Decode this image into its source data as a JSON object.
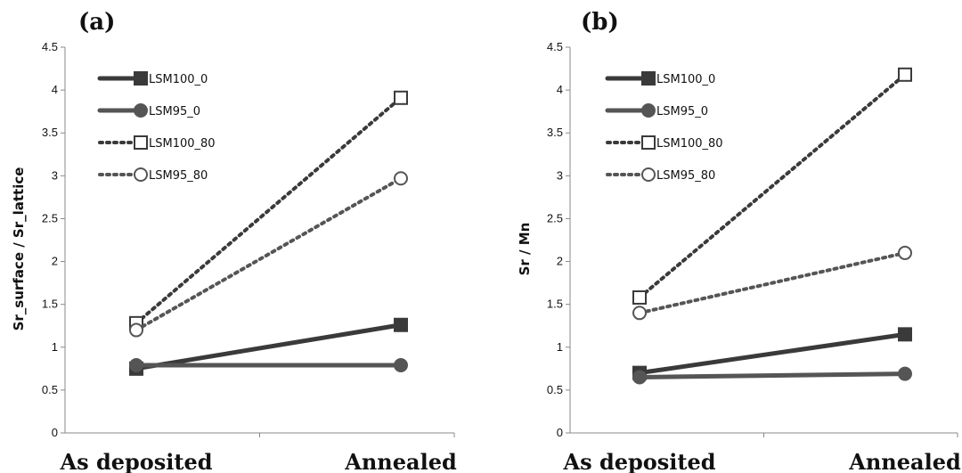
{
  "chart_data": [
    {
      "type": "line",
      "panel_label": "(a)",
      "ylabel": "Sr_surface / Sr_lattice",
      "xlabel": "",
      "categories": [
        "As deposited",
        "Annealed"
      ],
      "ylim": [
        0,
        4.5
      ],
      "yticks": [
        "0",
        "0.5",
        "1",
        "1.5",
        "2",
        "2.5",
        "3",
        "3.5",
        "4",
        "4.5"
      ],
      "grid": false,
      "legend_position": "top-left",
      "series": [
        {
          "name": "LSM100_0",
          "values": [
            0.75,
            1.26
          ],
          "color": "#3a3a3a",
          "dash": "solid",
          "marker": "square-filled"
        },
        {
          "name": "LSM95_0",
          "values": [
            0.79,
            0.79
          ],
          "color": "#555555",
          "dash": "solid",
          "marker": "circle-filled"
        },
        {
          "name": "LSM100_80",
          "values": [
            1.28,
            3.91
          ],
          "color": "#3a3a3a",
          "dash": "dotted",
          "marker": "square-open"
        },
        {
          "name": "LSM95_80",
          "values": [
            1.2,
            2.97
          ],
          "color": "#555555",
          "dash": "dotted",
          "marker": "circle-open"
        }
      ]
    },
    {
      "type": "line",
      "panel_label": "(b)",
      "ylabel": "Sr / Mn",
      "xlabel": "",
      "categories": [
        "As deposited",
        "Annealed"
      ],
      "ylim": [
        0,
        4.5
      ],
      "yticks": [
        "0",
        "0.5",
        "1",
        "1.5",
        "2",
        "2.5",
        "3",
        "3.5",
        "4",
        "4.5"
      ],
      "grid": false,
      "legend_position": "top-left",
      "series": [
        {
          "name": "LSM100_0",
          "values": [
            0.7,
            1.15
          ],
          "color": "#3a3a3a",
          "dash": "solid",
          "marker": "square-filled"
        },
        {
          "name": "LSM95_0",
          "values": [
            0.65,
            0.69
          ],
          "color": "#555555",
          "dash": "solid",
          "marker": "circle-filled"
        },
        {
          "name": "LSM100_80",
          "values": [
            1.58,
            4.18
          ],
          "color": "#3a3a3a",
          "dash": "dotted",
          "marker": "square-open"
        },
        {
          "name": "LSM95_80",
          "values": [
            1.4,
            2.1
          ],
          "color": "#555555",
          "dash": "dotted",
          "marker": "circle-open"
        }
      ]
    }
  ]
}
